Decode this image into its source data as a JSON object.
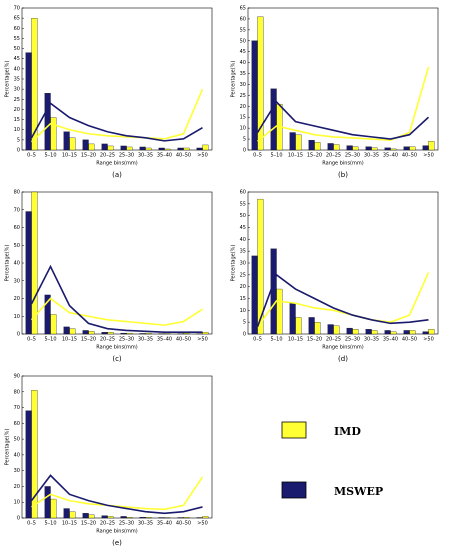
{
  "legend": {
    "series": [
      {
        "name": "IMD",
        "color": "#ffff33"
      },
      {
        "name": "MSWEP",
        "color": "#1a1a6e"
      }
    ]
  },
  "chart_data": [
    {
      "type": "bar",
      "caption": "(a)",
      "x_label": "Range bins(mm)",
      "y_label": "Percentage(%)",
      "categories": [
        "0–5",
        "5–10",
        "10–15",
        "15–20",
        "20–25",
        "25–30",
        "30–35",
        "35–40",
        "40–50",
        ">50"
      ],
      "ylim": [
        0,
        70
      ],
      "yticks": [
        0,
        5,
        10,
        15,
        20,
        25,
        30,
        35,
        40,
        45,
        50,
        55,
        60,
        65,
        70
      ],
      "series": [
        {
          "values": [
            65,
            16,
            6,
            3,
            2,
            1.5,
            1,
            0.5,
            1,
            2.5
          ],
          "line_values": [
            4,
            13,
            10,
            8,
            7,
            6.5,
            6,
            5.5,
            8,
            30
          ]
        },
        {
          "values": [
            48,
            28,
            9,
            5,
            3,
            2,
            1.5,
            1,
            1,
            1
          ],
          "line_values": [
            6,
            23,
            16,
            12,
            9,
            7,
            6,
            4.5,
            5.5,
            11
          ]
        }
      ]
    },
    {
      "type": "bar",
      "caption": "(b)",
      "x_label": "Range bins(mm)",
      "y_label": "Percentage(%)",
      "categories": [
        "0–5",
        "5–10",
        "10–15",
        "15–20",
        "20–25",
        "25–30",
        "30–35",
        "35–40",
        "40–50",
        ">50"
      ],
      "ylim": [
        0,
        65
      ],
      "yticks": [
        0,
        5,
        10,
        15,
        20,
        25,
        30,
        35,
        40,
        45,
        50,
        55,
        60,
        65
      ],
      "series": [
        {
          "values": [
            61,
            21,
            7,
            3.5,
            2.5,
            1.5,
            1,
            0.5,
            1.5,
            4
          ],
          "line_values": [
            4,
            11,
            9,
            7,
            6,
            5.5,
            5,
            4.5,
            8,
            38
          ]
        },
        {
          "values": [
            50,
            28,
            8,
            4.5,
            3,
            2,
            1.5,
            1,
            1.5,
            2
          ],
          "line_values": [
            8,
            22,
            13,
            11,
            9,
            7,
            6,
            5,
            7,
            15
          ]
        }
      ]
    },
    {
      "type": "bar",
      "caption": "(c)",
      "x_label": "Range bins(mm)",
      "y_label": "Percentage(%)",
      "categories": [
        "0–5",
        "5–10",
        "10–15",
        "15–20",
        "20–25",
        "25–30",
        "30–35",
        "35–40",
        "40–50",
        ">50"
      ],
      "ylim": [
        0,
        80
      ],
      "yticks": [
        0,
        10,
        20,
        30,
        40,
        50,
        60,
        70,
        80
      ],
      "series": [
        {
          "values": [
            80,
            11,
            3,
            1.5,
            1,
            0.5,
            0.5,
            0.3,
            0.5,
            1
          ],
          "line_values": [
            8,
            20,
            12,
            10,
            8,
            7,
            6,
            5,
            7,
            14
          ]
        },
        {
          "values": [
            69,
            22,
            4,
            2,
            1,
            0.5,
            0.3,
            0.2,
            0.2,
            0.2
          ],
          "line_values": [
            17,
            38,
            16,
            6,
            3,
            2,
            1.5,
            1,
            1,
            1
          ]
        }
      ]
    },
    {
      "type": "bar",
      "caption": "(d)",
      "x_label": "Range bins(mm)",
      "y_label": "Percentage(%)",
      "categories": [
        "0–5",
        "5–10",
        "10–15",
        "15–20",
        "20–25",
        "25–30",
        "30–35",
        "35–40",
        "40–50",
        ">50"
      ],
      "ylim": [
        0,
        60
      ],
      "yticks": [
        0,
        5,
        10,
        15,
        20,
        25,
        30,
        35,
        40,
        45,
        50,
        55,
        60
      ],
      "series": [
        {
          "values": [
            57,
            19,
            7,
            5,
            3.5,
            2,
            1.5,
            1,
            1.5,
            2
          ],
          "line_values": [
            3,
            14,
            13,
            11,
            10,
            8,
            6,
            5,
            8,
            26
          ]
        },
        {
          "values": [
            33,
            36,
            13,
            7,
            4,
            2.5,
            2,
            1.5,
            1.5,
            1
          ],
          "line_values": [
            3,
            25,
            19,
            15,
            11,
            8,
            6,
            4.5,
            5,
            6
          ]
        }
      ]
    },
    {
      "type": "bar",
      "caption": "(e)",
      "x_label": "Range bins(mm)",
      "y_label": "Percentage(%)",
      "categories": [
        "0–5",
        "5–10",
        "10–15",
        "15–20",
        "20–25",
        "25–30",
        "30–35",
        "35–40",
        "40–50",
        ">50"
      ],
      "ylim": [
        0,
        90
      ],
      "yticks": [
        0,
        10,
        20,
        30,
        40,
        50,
        60,
        70,
        80,
        90
      ],
      "series": [
        {
          "values": [
            81,
            12,
            4,
            2,
            1,
            0.5,
            0.5,
            0.3,
            0.5,
            1
          ],
          "line_values": [
            7,
            15,
            11,
            9,
            8,
            7,
            6,
            5.5,
            8,
            26
          ]
        },
        {
          "values": [
            68,
            20,
            6,
            3,
            1.5,
            1,
            0.5,
            0.3,
            0.3,
            0.3
          ],
          "line_values": [
            11,
            27,
            15,
            11,
            8,
            6,
            4,
            3,
            4,
            7
          ]
        }
      ]
    }
  ]
}
